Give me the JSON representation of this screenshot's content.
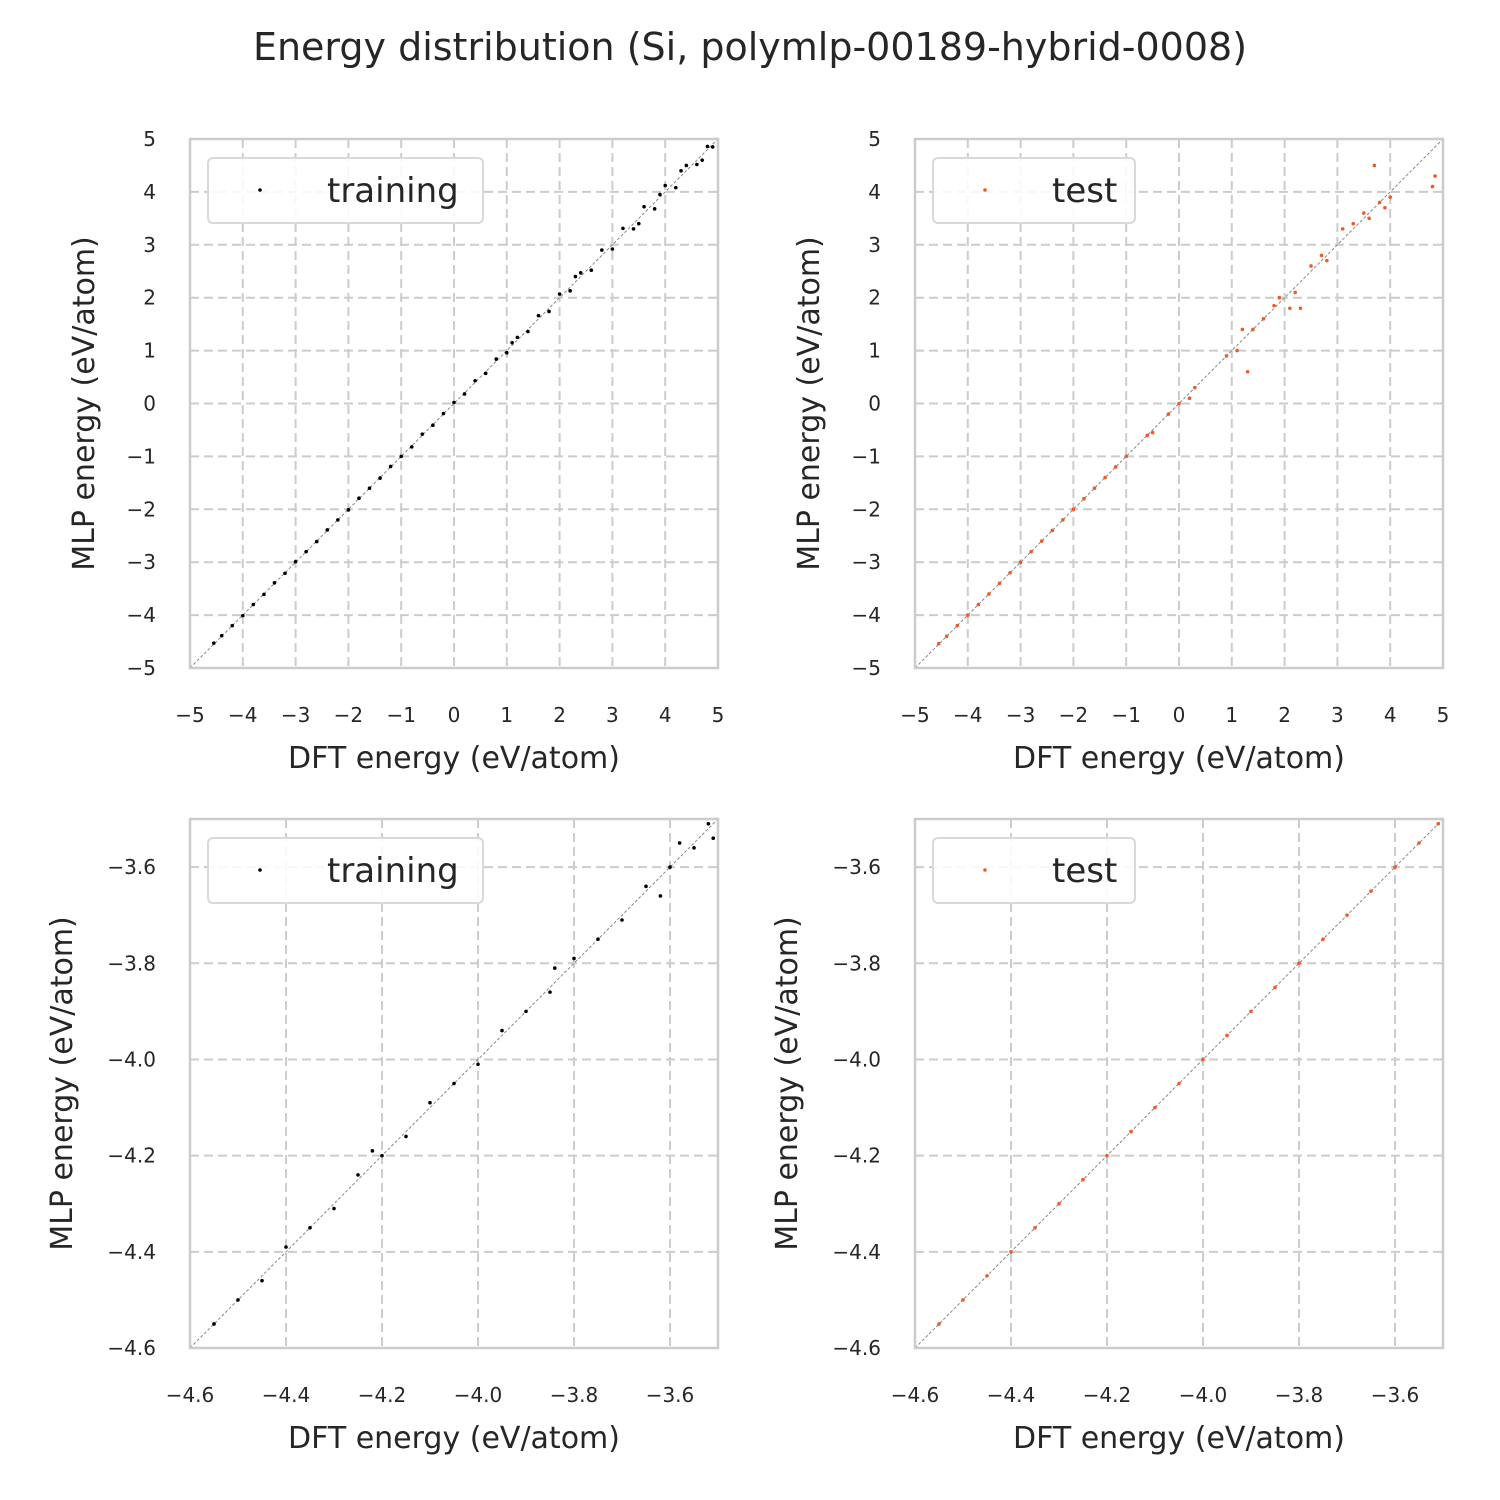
{
  "figure": {
    "title": "Energy distribution (Si, polymlp-00189-hybrid-0008)"
  },
  "colors": {
    "training": "#000000",
    "test": "#f05a24",
    "grid": "#cccccc",
    "frame": "#cccccc",
    "diagonal": "#888888"
  },
  "chart_data": [
    {
      "type": "scatter",
      "xlabel": "DFT energy (eV/atom)",
      "ylabel": "MLP energy (eV/atom)",
      "xlim": [
        -5,
        5
      ],
      "ylim": [
        -5,
        5
      ],
      "xticks": [
        -5,
        -4,
        -3,
        -2,
        -1,
        0,
        1,
        2,
        3,
        4,
        5
      ],
      "yticks": [
        -5,
        -4,
        -3,
        -2,
        -1,
        0,
        1,
        2,
        3,
        4,
        5
      ],
      "xtick_labels": [
        "−5",
        "−4",
        "−3",
        "−2",
        "−1",
        "0",
        "1",
        "2",
        "3",
        "4",
        "5"
      ],
      "ytick_labels": [
        "−5",
        "−4",
        "−3",
        "−2",
        "−1",
        "0",
        "1",
        "2",
        "3",
        "4",
        "5"
      ],
      "grid": true,
      "legend": "top-left",
      "diagonal_reference": true,
      "series": [
        {
          "name": "training",
          "color": "#000000",
          "points": [
            [
              -4.55,
              -4.53
            ],
            [
              -4.4,
              -4.39
            ],
            [
              -4.2,
              -4.2
            ],
            [
              -4.0,
              -4.01
            ],
            [
              -3.8,
              -3.8
            ],
            [
              -3.6,
              -3.61
            ],
            [
              -3.4,
              -3.39
            ],
            [
              -3.2,
              -3.21
            ],
            [
              -3.0,
              -2.99
            ],
            [
              -2.8,
              -2.8
            ],
            [
              -2.6,
              -2.61
            ],
            [
              -2.4,
              -2.39
            ],
            [
              -2.2,
              -2.2
            ],
            [
              -2.0,
              -2.01
            ],
            [
              -1.8,
              -1.79
            ],
            [
              -1.6,
              -1.6
            ],
            [
              -1.4,
              -1.41
            ],
            [
              -1.2,
              -1.19
            ],
            [
              -1.0,
              -1.0
            ],
            [
              -0.8,
              -0.82
            ],
            [
              -0.6,
              -0.58
            ],
            [
              -0.4,
              -0.41
            ],
            [
              -0.2,
              -0.19
            ],
            [
              0.0,
              0.02
            ],
            [
              0.2,
              0.18
            ],
            [
              0.4,
              0.43
            ],
            [
              0.6,
              0.57
            ],
            [
              0.8,
              0.84
            ],
            [
              1.0,
              0.96
            ],
            [
              1.2,
              1.25
            ],
            [
              1.4,
              1.36
            ],
            [
              1.6,
              1.66
            ],
            [
              1.8,
              1.74
            ],
            [
              2.0,
              2.07
            ],
            [
              2.2,
              2.13
            ],
            [
              2.4,
              2.47
            ],
            [
              2.6,
              2.52
            ],
            [
              2.8,
              2.9
            ],
            [
              3.0,
              2.92
            ],
            [
              3.2,
              3.31
            ],
            [
              3.4,
              3.3
            ],
            [
              3.6,
              3.72
            ],
            [
              3.8,
              3.68
            ],
            [
              4.0,
              4.12
            ],
            [
              4.2,
              4.08
            ],
            [
              4.4,
              4.5
            ],
            [
              4.6,
              4.52
            ],
            [
              4.8,
              4.86
            ],
            [
              4.9,
              4.85
            ],
            [
              2.3,
              2.4
            ],
            [
              3.5,
              3.4
            ],
            [
              4.3,
              4.4
            ],
            [
              1.1,
              1.15
            ],
            [
              3.9,
              3.95
            ],
            [
              4.7,
              4.6
            ]
          ]
        }
      ]
    },
    {
      "type": "scatter",
      "xlabel": "DFT energy (eV/atom)",
      "ylabel": "MLP energy (eV/atom)",
      "xlim": [
        -5,
        5
      ],
      "ylim": [
        -5,
        5
      ],
      "xticks": [
        -5,
        -4,
        -3,
        -2,
        -1,
        0,
        1,
        2,
        3,
        4,
        5
      ],
      "yticks": [
        -5,
        -4,
        -3,
        -2,
        -1,
        0,
        1,
        2,
        3,
        4,
        5
      ],
      "xtick_labels": [
        "−5",
        "−4",
        "−3",
        "−2",
        "−1",
        "0",
        "1",
        "2",
        "3",
        "4",
        "5"
      ],
      "ytick_labels": [
        "−5",
        "−4",
        "−3",
        "−2",
        "−1",
        "0",
        "1",
        "2",
        "3",
        "4",
        "5"
      ],
      "grid": true,
      "legend": "top-left",
      "diagonal_reference": true,
      "series": [
        {
          "name": "test",
          "color": "#f05a24",
          "points": [
            [
              -4.55,
              -4.54
            ],
            [
              -4.4,
              -4.4
            ],
            [
              -4.2,
              -4.2
            ],
            [
              -4.0,
              -4.0
            ],
            [
              -3.8,
              -3.8
            ],
            [
              -3.6,
              -3.6
            ],
            [
              -3.4,
              -3.4
            ],
            [
              -3.2,
              -3.2
            ],
            [
              -3.0,
              -3.0
            ],
            [
              -2.8,
              -2.8
            ],
            [
              -2.6,
              -2.6
            ],
            [
              -2.4,
              -2.4
            ],
            [
              -2.2,
              -2.2
            ],
            [
              -2.0,
              -2.0
            ],
            [
              -1.8,
              -1.8
            ],
            [
              -1.6,
              -1.6
            ],
            [
              -1.4,
              -1.4
            ],
            [
              -1.2,
              -1.2
            ],
            [
              -1.0,
              -1.0
            ],
            [
              -0.6,
              -0.6
            ],
            [
              -0.5,
              -0.55
            ],
            [
              -0.2,
              -0.2
            ],
            [
              0.0,
              0.0
            ],
            [
              0.2,
              0.1
            ],
            [
              0.3,
              0.3
            ],
            [
              0.9,
              0.9
            ],
            [
              1.1,
              1.0
            ],
            [
              1.2,
              1.4
            ],
            [
              1.3,
              0.6
            ],
            [
              1.4,
              1.4
            ],
            [
              1.6,
              1.6
            ],
            [
              1.8,
              1.85
            ],
            [
              1.9,
              2.0
            ],
            [
              2.1,
              1.8
            ],
            [
              2.2,
              2.1
            ],
            [
              2.3,
              1.8
            ],
            [
              2.5,
              2.6
            ],
            [
              2.7,
              2.8
            ],
            [
              2.8,
              2.7
            ],
            [
              3.1,
              3.3
            ],
            [
              3.3,
              3.4
            ],
            [
              3.5,
              3.6
            ],
            [
              3.6,
              3.5
            ],
            [
              3.7,
              4.5
            ],
            [
              3.8,
              3.8
            ],
            [
              3.9,
              3.7
            ],
            [
              4.0,
              3.9
            ],
            [
              4.8,
              4.1
            ],
            [
              4.85,
              4.3
            ]
          ]
        }
      ]
    },
    {
      "type": "scatter",
      "xlabel": "DFT energy (eV/atom)",
      "ylabel": "MLP energy (eV/atom)",
      "xlim": [
        -4.6,
        -3.5
      ],
      "ylim": [
        -4.6,
        -3.5
      ],
      "xticks": [
        -4.6,
        -4.4,
        -4.2,
        -4.0,
        -3.8,
        -3.6
      ],
      "yticks": [
        -4.6,
        -4.4,
        -4.2,
        -4.0,
        -3.8,
        -3.6
      ],
      "xtick_labels": [
        "−4.6",
        "−4.4",
        "−4.2",
        "−4.0",
        "−3.8",
        "−3.6"
      ],
      "ytick_labels": [
        "−4.6",
        "−4.4",
        "−4.2",
        "−4.0",
        "−3.8",
        "−3.6"
      ],
      "grid": true,
      "legend": "top-left",
      "diagonal_reference": true,
      "series": [
        {
          "name": "training",
          "color": "#000000",
          "points": [
            [
              -4.55,
              -4.55
            ],
            [
              -4.5,
              -4.5
            ],
            [
              -4.45,
              -4.46
            ],
            [
              -4.4,
              -4.39
            ],
            [
              -4.35,
              -4.35
            ],
            [
              -4.3,
              -4.31
            ],
            [
              -4.25,
              -4.24
            ],
            [
              -4.2,
              -4.2
            ],
            [
              -4.15,
              -4.16
            ],
            [
              -4.1,
              -4.09
            ],
            [
              -4.05,
              -4.05
            ],
            [
              -4.0,
              -4.01
            ],
            [
              -3.95,
              -3.94
            ],
            [
              -3.9,
              -3.9
            ],
            [
              -3.85,
              -3.86
            ],
            [
              -3.8,
              -3.79
            ],
            [
              -3.75,
              -3.75
            ],
            [
              -3.7,
              -3.71
            ],
            [
              -3.65,
              -3.64
            ],
            [
              -3.6,
              -3.6
            ],
            [
              -3.55,
              -3.56
            ],
            [
              -3.52,
              -3.51
            ],
            [
              -3.51,
              -3.54
            ],
            [
              -3.62,
              -3.66
            ],
            [
              -4.22,
              -4.19
            ],
            [
              -3.84,
              -3.81
            ],
            [
              -3.58,
              -3.55
            ]
          ]
        }
      ]
    },
    {
      "type": "scatter",
      "xlabel": "DFT energy (eV/atom)",
      "ylabel": "MLP energy (eV/atom)",
      "xlim": [
        -4.6,
        -3.5
      ],
      "ylim": [
        -4.6,
        -3.5
      ],
      "xticks": [
        -4.6,
        -4.4,
        -4.2,
        -4.0,
        -3.8,
        -3.6
      ],
      "yticks": [
        -4.6,
        -4.4,
        -4.2,
        -4.0,
        -3.8,
        -3.6
      ],
      "xtick_labels": [
        "−4.6",
        "−4.4",
        "−4.2",
        "−4.0",
        "−3.8",
        "−3.6"
      ],
      "ytick_labels": [
        "−4.6",
        "−4.4",
        "−4.2",
        "−4.0",
        "−3.8",
        "−3.6"
      ],
      "grid": true,
      "legend": "top-left",
      "diagonal_reference": true,
      "series": [
        {
          "name": "test",
          "color": "#f05a24",
          "points": [
            [
              -4.55,
              -4.55
            ],
            [
              -4.5,
              -4.5
            ],
            [
              -4.45,
              -4.45
            ],
            [
              -4.4,
              -4.4
            ],
            [
              -4.35,
              -4.35
            ],
            [
              -4.3,
              -4.3
            ],
            [
              -4.25,
              -4.25
            ],
            [
              -4.2,
              -4.2
            ],
            [
              -4.15,
              -4.15
            ],
            [
              -4.1,
              -4.1
            ],
            [
              -4.05,
              -4.05
            ],
            [
              -4.0,
              -4.0
            ],
            [
              -3.95,
              -3.95
            ],
            [
              -3.9,
              -3.9
            ],
            [
              -3.85,
              -3.85
            ],
            [
              -3.8,
              -3.8
            ],
            [
              -3.75,
              -3.75
            ],
            [
              -3.7,
              -3.7
            ],
            [
              -3.65,
              -3.65
            ],
            [
              -3.6,
              -3.6
            ],
            [
              -3.55,
              -3.55
            ],
            [
              -3.51,
              -3.51
            ]
          ]
        }
      ]
    }
  ]
}
